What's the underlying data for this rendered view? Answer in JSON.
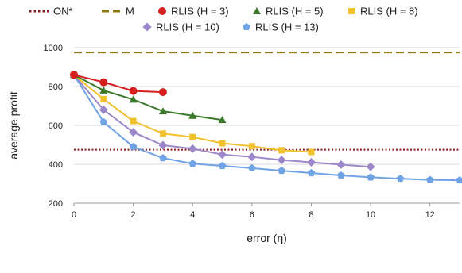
{
  "chart_data": {
    "type": "line",
    "xlabel": "error (η)",
    "ylabel": "average profit",
    "xlim": [
      0,
      13
    ],
    "ylim": [
      200,
      1000
    ],
    "xticks": [
      "0",
      "2",
      "4",
      "6",
      "8",
      "10",
      "12"
    ],
    "yticks": [
      "200",
      "400",
      "600",
      "800",
      "1000"
    ],
    "grid": "horizontal",
    "legend_placement": "top",
    "reference_lines": [
      {
        "name": "ON*",
        "value": 475,
        "style": "dotted",
        "color": "#8b1a1a"
      },
      {
        "name": "M",
        "value": 975,
        "style": "dashed",
        "color": "#8c7a10"
      }
    ],
    "series": [
      {
        "name": "RLIS (H = 3)",
        "color": "#d62020",
        "marker": "circle",
        "x": [
          0,
          1,
          2,
          3
        ],
        "y": [
          860,
          822,
          777,
          771
        ]
      },
      {
        "name": "RLIS (H = 5)",
        "color": "#3a7a2a",
        "marker": "triangle",
        "x": [
          0,
          1,
          2,
          3,
          4,
          5
        ],
        "y": [
          860,
          780,
          733,
          673,
          650,
          628
        ]
      },
      {
        "name": "RLIS (H = 8)",
        "color": "#f2c12e",
        "marker": "square",
        "x": [
          0,
          1,
          2,
          3,
          4,
          5,
          6,
          7,
          8
        ],
        "y": [
          860,
          735,
          622,
          558,
          540,
          508,
          493,
          472,
          463
        ]
      },
      {
        "name": "RLIS (H = 10)",
        "color": "#9b87c9",
        "marker": "diamond",
        "x": [
          0,
          1,
          2,
          3,
          4,
          5,
          6,
          7,
          8,
          9,
          10
        ],
        "y": [
          860,
          680,
          565,
          498,
          480,
          450,
          438,
          422,
          410,
          398,
          387
        ]
      },
      {
        "name": "RLIS (H = 13)",
        "color": "#6fa3e6",
        "marker": "pentagon",
        "x": [
          0,
          1,
          2,
          3,
          4,
          5,
          6,
          7,
          8,
          9,
          10,
          11,
          12,
          13
        ],
        "y": [
          860,
          617,
          490,
          432,
          403,
          392,
          380,
          367,
          355,
          343,
          333,
          326,
          320,
          318
        ]
      }
    ]
  }
}
